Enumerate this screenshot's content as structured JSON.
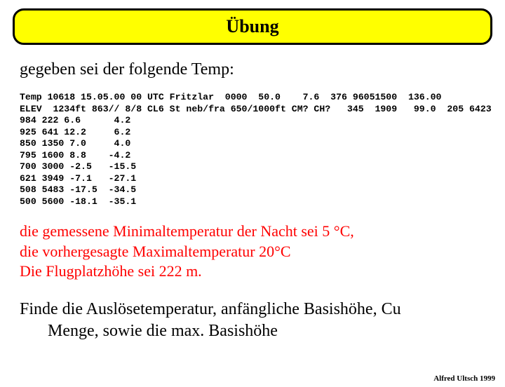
{
  "title": "Übung",
  "intro": "gegeben sei der folgende Temp:",
  "mono_lines": [
    "Temp 10618 15.05.00 00 UTC Fritzlar  0000  50.0    7.6  376 96051500  136.00",
    "ELEV  1234ft 863// 8/8 CL6 St neb/fra 650/1000ft CM? CH?   345  1909   99.0  205 6423",
    "984 222 6.6      4.2",
    "925 641 12.2     6.2",
    "850 1350 7.0     4.0",
    "795 1600 8.8    -4.2",
    "700 3000 -2.5   -15.5",
    "621 3949 -7.1   -27.1",
    "508 5483 -17.5  -34.5",
    "500 5600 -18.1  -35.1"
  ],
  "given": {
    "line1": "die gemessene Minimaltemperatur der Nacht sei 5 °C,",
    "line2": "die vorhergesagte Maximaltemperatur 20°C",
    "line3": "Die Flugplatzhöhe sei 222 m."
  },
  "task": {
    "line1": "Finde die Auslösetemperatur, anfängliche Basishöhe, Cu",
    "line2": "Menge, sowie die max. Basishöhe"
  },
  "footer": "Alfred Ultsch 1999",
  "colors": {
    "title_bg": "#ffff00",
    "title_border": "#000000",
    "given_color": "#ff0000",
    "text_color": "#000000",
    "page_bg": "#ffffff"
  },
  "fontsizes": {
    "title": 26,
    "intro": 24,
    "mono": 13,
    "given": 22,
    "task": 24,
    "footer": 11
  }
}
